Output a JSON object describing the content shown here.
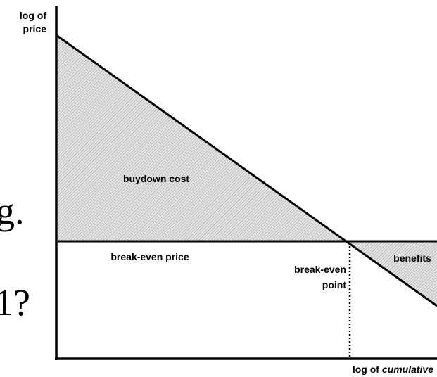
{
  "axes": {
    "y_label": [
      "log of",
      "price"
    ],
    "x_label": {
      "prefix": "log of",
      "italic": "cumulative"
    }
  },
  "regions": {
    "buydown": "buydown cost",
    "benefits": "benefits"
  },
  "lines": {
    "break_even_price": "break-even price"
  },
  "point": [
    "break-even",
    "point"
  ],
  "fragments": [
    "g.",
    "1?"
  ]
}
